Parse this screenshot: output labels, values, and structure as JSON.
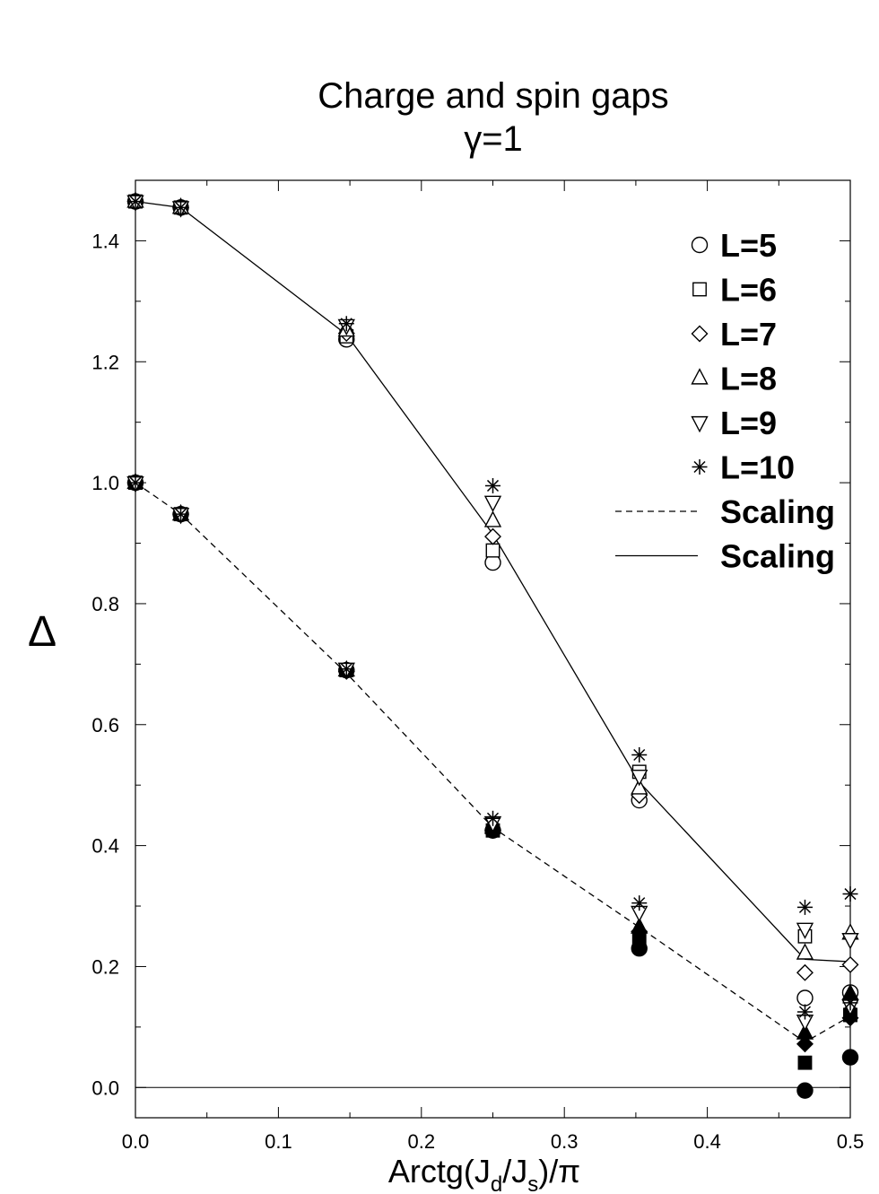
{
  "chart_data": {
    "type": "scatter",
    "title": "Charge and spin gaps",
    "subtitle": "γ=1",
    "xlabel_parts": [
      "Arctg(J",
      "d",
      "/J",
      "s",
      ")/π"
    ],
    "ylabel": "Δ",
    "xlim": [
      0.0,
      0.5
    ],
    "ylim": [
      -0.05,
      1.5
    ],
    "xticks": [
      "0.0",
      "0.1",
      "0.2",
      "0.3",
      "0.4",
      "0.5"
    ],
    "yticks": [
      "0.0",
      "0.2",
      "0.4",
      "0.6",
      "0.8",
      "1.0",
      "1.2",
      "1.4"
    ],
    "grid": false,
    "legend_position": "top-right",
    "x": [
      0.0,
      0.0317,
      0.1476,
      0.25,
      0.3524,
      0.4683,
      0.5
    ],
    "series": [
      {
        "name": "L=5",
        "marker": "circle",
        "filled": false,
        "values": [
          1.465,
          1.455,
          1.237,
          0.868,
          0.475,
          0.148,
          0.157
        ]
      },
      {
        "name": "L=6",
        "marker": "square",
        "filled": false,
        "values": [
          1.465,
          1.455,
          1.242,
          0.888,
          0.522,
          0.25,
          0.12
        ]
      },
      {
        "name": "L=7",
        "marker": "diamond",
        "filled": false,
        "values": [
          1.465,
          1.455,
          1.247,
          0.911,
          0.483,
          0.19,
          0.203
        ]
      },
      {
        "name": "L=8",
        "marker": "triangle-up",
        "filled": false,
        "values": [
          1.465,
          1.455,
          1.252,
          0.937,
          0.495,
          0.222,
          0.255
        ]
      },
      {
        "name": "L=9",
        "marker": "triangle-down",
        "filled": false,
        "values": [
          1.465,
          1.455,
          1.26,
          0.968,
          0.515,
          0.262,
          0.245
        ]
      },
      {
        "name": "L=10",
        "marker": "star",
        "filled": false,
        "values": [
          1.465,
          1.455,
          1.263,
          0.995,
          0.55,
          0.298,
          0.32
        ]
      },
      {
        "name": "",
        "marker": "circle",
        "filled": true,
        "values": [
          1.0,
          0.948,
          0.69,
          0.425,
          0.23,
          -0.005,
          0.05
        ]
      },
      {
        "name": "",
        "marker": "square",
        "filled": true,
        "values": [
          1.0,
          0.948,
          0.69,
          0.425,
          0.248,
          0.041,
          0.12
        ]
      },
      {
        "name": "",
        "marker": "diamond",
        "filled": true,
        "values": [
          1.0,
          0.948,
          0.688,
          0.425,
          0.258,
          0.072,
          0.115
        ]
      },
      {
        "name": "",
        "marker": "triangle-up",
        "filled": true,
        "values": [
          1.0,
          0.948,
          0.69,
          0.43,
          0.265,
          0.09,
          0.155
        ]
      },
      {
        "name": "",
        "marker": "triangle-down",
        "filled": false,
        "values": [
          1.0,
          0.948,
          0.692,
          0.438,
          0.29,
          0.11,
          0.135
        ]
      },
      {
        "name": "",
        "marker": "star",
        "filled": false,
        "values": [
          1.0,
          0.948,
          0.692,
          0.445,
          0.305,
          0.125,
          0.14
        ]
      },
      {
        "name": "Scaling",
        "marker": "none",
        "line": "dashed",
        "values": [
          1.0,
          0.948,
          0.685,
          0.43,
          0.265,
          0.075,
          0.118
        ]
      },
      {
        "name": "Scaling",
        "marker": "none",
        "line": "solid",
        "values": [
          1.465,
          1.455,
          1.245,
          0.915,
          0.505,
          0.212,
          0.208
        ]
      }
    ],
    "reference_line": {
      "y": 0.0
    }
  }
}
